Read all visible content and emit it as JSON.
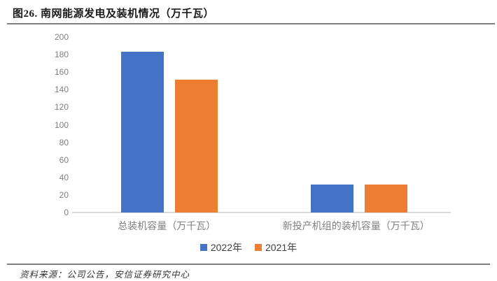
{
  "header": {
    "title": "图26. 南网能源发电及装机情况（万千瓦）"
  },
  "footer": {
    "source": "资料来源：公司公告，安信证券研究中心"
  },
  "chart_data": {
    "type": "bar",
    "title": "图26. 南网能源发电及装机情况（万千瓦）",
    "categories": [
      "总装机容量（万千瓦）",
      "新投产机组的装机容量（万千瓦）"
    ],
    "series": [
      {
        "name": "2022年",
        "color": "#4472C4",
        "values": [
          183,
          32
        ]
      },
      {
        "name": "2021年",
        "color": "#ED7D31",
        "values": [
          151,
          32
        ]
      }
    ],
    "ylim": [
      0,
      200
    ],
    "yticks": [
      0,
      20,
      40,
      60,
      80,
      100,
      120,
      140,
      160,
      180,
      200
    ],
    "grid": false,
    "legend_position": "bottom",
    "colors": {
      "axis_line": "#D9D9D9",
      "tick_label": "#7F7F7F",
      "category_label": "#7F7F7F",
      "legend_text": "#404040",
      "rule": "#7F7F7F"
    }
  }
}
